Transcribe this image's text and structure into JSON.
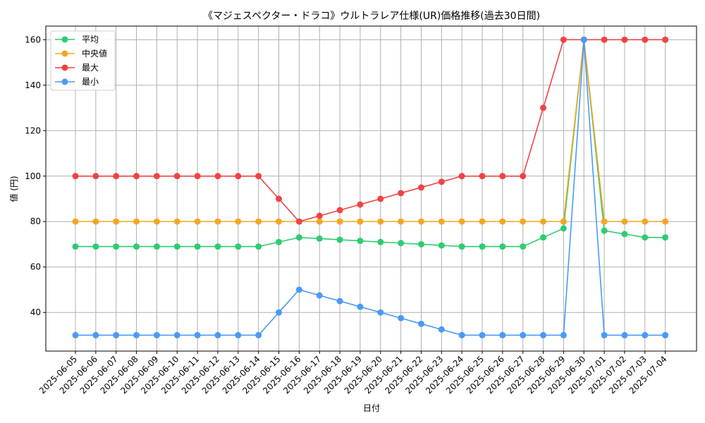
{
  "chart_data": {
    "type": "line",
    "title": "《マジェスペクター・ドラコ》ウルトラレア仕様(UR)価格推移(過去30日間)",
    "xlabel": "日付",
    "ylabel": "値 (円)",
    "ylim": [
      23,
      166
    ],
    "yticks": [
      40,
      60,
      80,
      100,
      120,
      140,
      160
    ],
    "grid": true,
    "legend_position": "top-left",
    "categories": [
      "2025-06-05",
      "2025-06-06",
      "2025-06-07",
      "2025-06-08",
      "2025-06-09",
      "2025-06-10",
      "2025-06-11",
      "2025-06-12",
      "2025-06-13",
      "2025-06-14",
      "2025-06-15",
      "2025-06-16",
      "2025-06-17",
      "2025-06-18",
      "2025-06-19",
      "2025-06-20",
      "2025-06-21",
      "2025-06-22",
      "2025-06-23",
      "2025-06-24",
      "2025-06-25",
      "2025-06-26",
      "2025-06-27",
      "2025-06-28",
      "2025-06-29",
      "2025-06-30",
      "2025-07-01",
      "2025-07-02",
      "2025-07-03",
      "2025-07-04"
    ],
    "series": [
      {
        "name": "平均",
        "color": "#2ecc71",
        "values": [
          69,
          69,
          69,
          69,
          69,
          69,
          69,
          69,
          69,
          69,
          71,
          73,
          72.5,
          72,
          71.5,
          71,
          70.5,
          70,
          69.5,
          69,
          69,
          69,
          69,
          73,
          77,
          160,
          76,
          74.5,
          73,
          73
        ]
      },
      {
        "name": "中央値",
        "color": "#f5a623",
        "values": [
          80,
          80,
          80,
          80,
          80,
          80,
          80,
          80,
          80,
          80,
          80,
          80,
          80,
          80,
          80,
          80,
          80,
          80,
          80,
          80,
          80,
          80,
          80,
          80,
          80,
          160,
          80,
          80,
          80,
          80
        ]
      },
      {
        "name": "最大",
        "color": "#ef4444",
        "values": [
          100,
          100,
          100,
          100,
          100,
          100,
          100,
          100,
          100,
          100,
          90,
          80,
          82.5,
          85,
          87.5,
          90,
          92.5,
          95,
          97.5,
          100,
          100,
          100,
          100,
          130,
          160,
          160,
          160,
          160,
          160,
          160
        ]
      },
      {
        "name": "最小",
        "color": "#4a9af5",
        "values": [
          30,
          30,
          30,
          30,
          30,
          30,
          30,
          30,
          30,
          30,
          40,
          50,
          47.5,
          45,
          42.5,
          40,
          37.5,
          35,
          32.5,
          30,
          30,
          30,
          30,
          30,
          30,
          160,
          30,
          30,
          30,
          30
        ]
      }
    ]
  }
}
